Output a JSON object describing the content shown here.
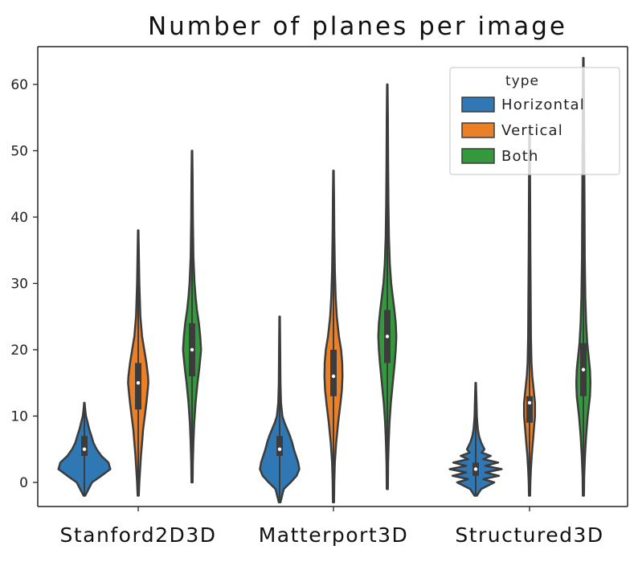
{
  "chart_data": {
    "type": "violin",
    "title": "Number of planes per image",
    "xlabel": "",
    "ylabel": "",
    "ylim": [
      -4,
      66
    ],
    "yticks": [
      0,
      10,
      20,
      30,
      40,
      50,
      60
    ],
    "categories": [
      "Stanford2D3D",
      "Matterport3D",
      "Structured3D"
    ],
    "legend": {
      "title": "type",
      "position": "top-right",
      "entries": [
        "Horizontal",
        "Vertical",
        "Both"
      ]
    },
    "colors": {
      "Horizontal": "#2f78b4",
      "Vertical": "#ea8129",
      "Both": "#34983c",
      "outline": "#3c3c3c"
    },
    "grid": false,
    "series": [
      {
        "name": "Horizontal",
        "stats": [
          {
            "min": -2,
            "q1": 4,
            "median": 5,
            "q3": 7,
            "max": 12
          },
          {
            "min": -3,
            "q1": 4,
            "median": 5,
            "q3": 7,
            "max": 25
          },
          {
            "min": -2,
            "q1": 1,
            "median": 2,
            "q3": 3,
            "max": 15
          }
        ]
      },
      {
        "name": "Vertical",
        "stats": [
          {
            "min": -2,
            "q1": 11,
            "median": 15,
            "q3": 18,
            "max": 38
          },
          {
            "min": -3,
            "q1": 13,
            "median": 16,
            "q3": 20,
            "max": 47
          },
          {
            "min": -2,
            "q1": 9,
            "median": 12,
            "q3": 13,
            "max": 53
          }
        ]
      },
      {
        "name": "Both",
        "stats": [
          {
            "min": 0,
            "q1": 16,
            "median": 20,
            "q3": 24,
            "max": 50
          },
          {
            "min": -1,
            "q1": 18,
            "median": 22,
            "q3": 26,
            "max": 60
          },
          {
            "min": -2,
            "q1": 13,
            "median": 17,
            "q3": 21,
            "max": 64
          }
        ]
      }
    ]
  }
}
